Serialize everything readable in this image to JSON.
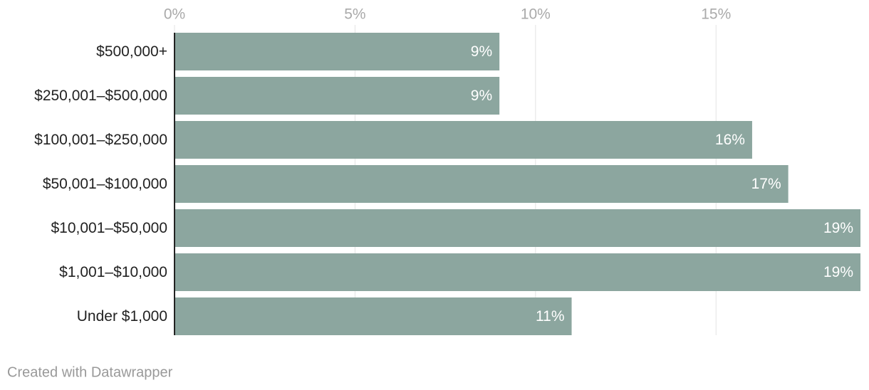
{
  "chart_data": {
    "type": "bar",
    "orientation": "horizontal",
    "categories": [
      "$500,000+",
      "$250,001–$500,000",
      "$100,001–$250,000",
      "$50,001–$100,000",
      "$10,001–$50,000",
      "$1,001–$10,000",
      "Under $1,000"
    ],
    "values": [
      9,
      9,
      16,
      17,
      19,
      19,
      11
    ],
    "value_labels": [
      "9%",
      "9%",
      "16%",
      "17%",
      "19%",
      "19%",
      "11%"
    ],
    "color": "#8ca69f",
    "xlim": [
      0,
      19
    ],
    "xticks": [
      {
        "value": 0,
        "label": "0%"
      },
      {
        "value": 5,
        "label": "5%"
      },
      {
        "value": 10,
        "label": "10%"
      },
      {
        "value": 15,
        "label": "15%"
      }
    ],
    "grid": true,
    "credit": "Created with Datawrapper"
  }
}
